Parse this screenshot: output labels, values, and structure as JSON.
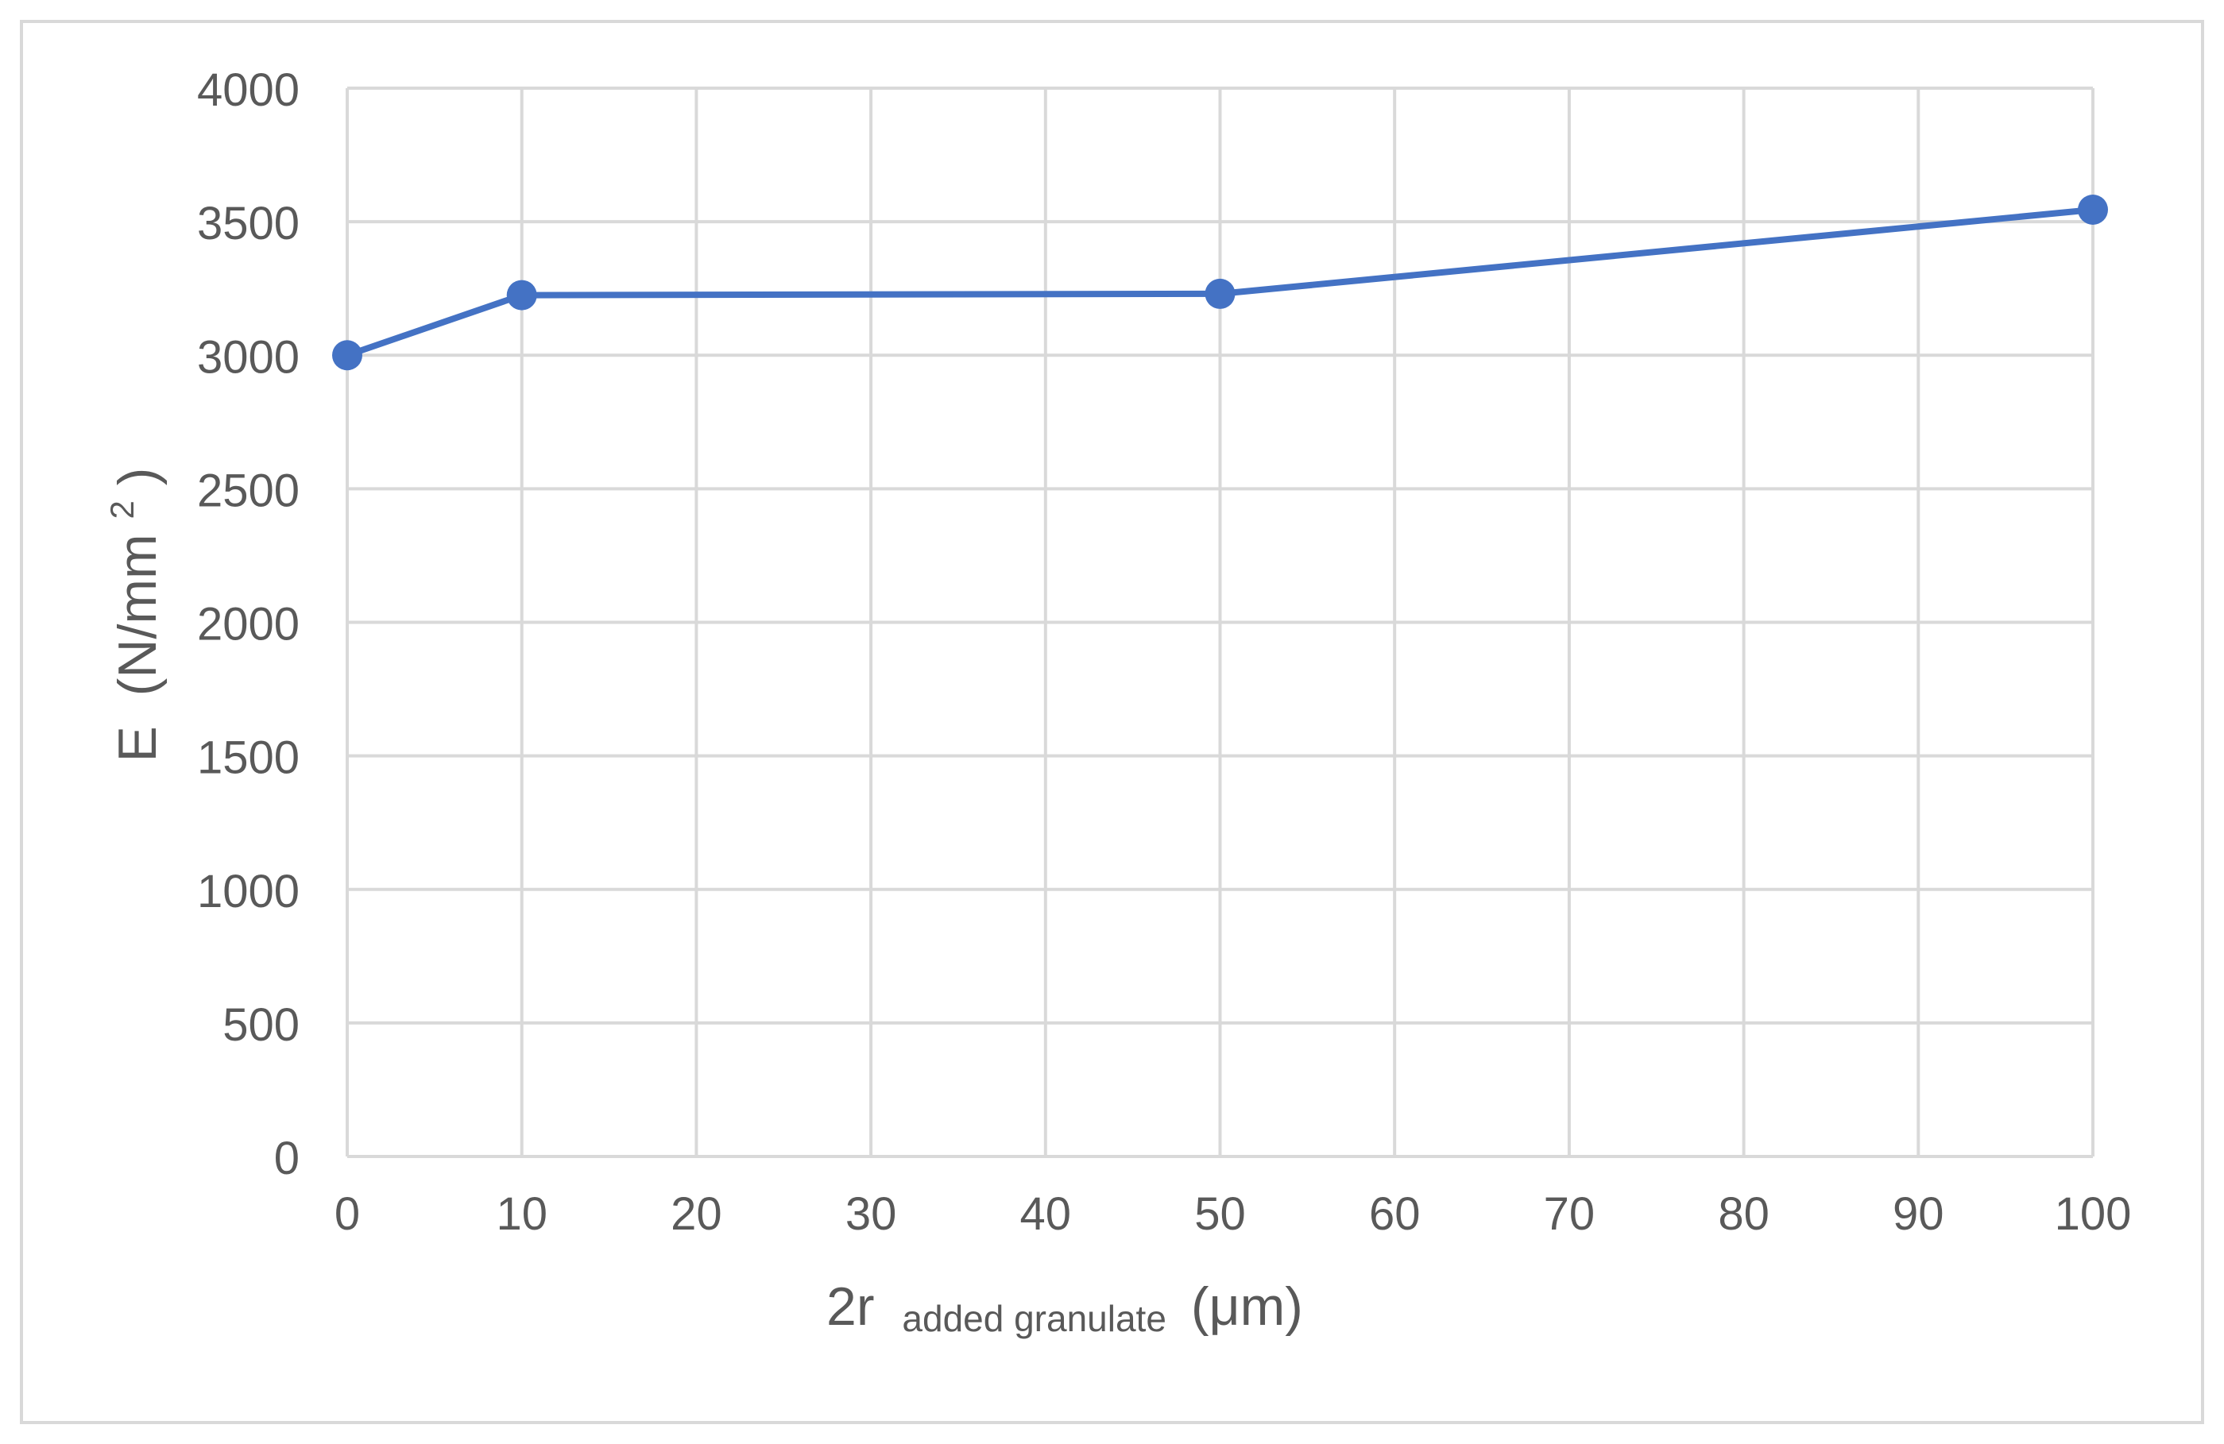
{
  "chart_data": {
    "type": "line",
    "x": [
      0,
      10,
      50,
      100
    ],
    "series": [
      {
        "values": [
          3000,
          3225,
          3230,
          3545
        ],
        "color": "#4472C4"
      }
    ],
    "xlim": [
      0,
      100
    ],
    "ylim": [
      0,
      4000
    ],
    "x_ticks": [
      0,
      10,
      20,
      30,
      40,
      50,
      60,
      70,
      80,
      90,
      100
    ],
    "y_ticks": [
      0,
      500,
      1000,
      1500,
      2000,
      2500,
      3000,
      3500,
      4000
    ],
    "xlabel": {
      "main": "2r",
      "subscript": "added granulate",
      "unit": "(μm)"
    },
    "ylabel": {
      "main": "E  (N/mm",
      "superscript": "2",
      "close": ")"
    },
    "grid": true,
    "legend": "none",
    "colors": {
      "grid": "#D9D9D9",
      "text": "#595959",
      "border": "#D9D9D9"
    }
  }
}
